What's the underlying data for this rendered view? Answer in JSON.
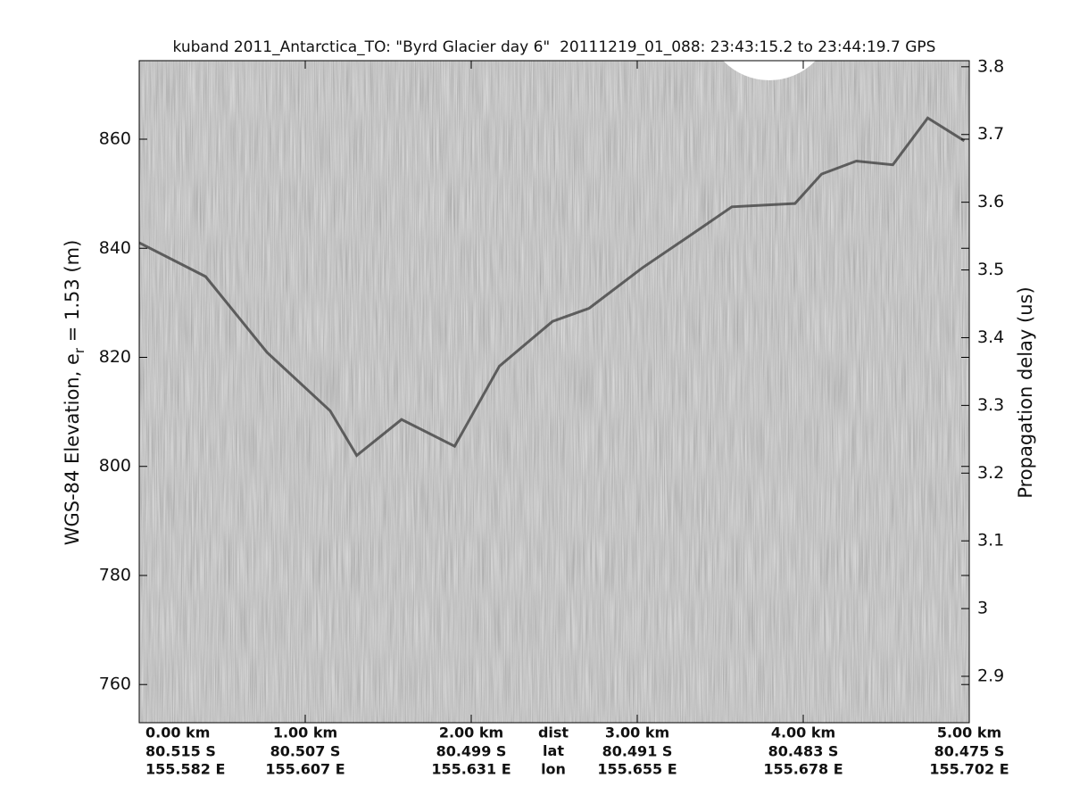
{
  "chart_data": {
    "type": "echogram",
    "title": "kuband 2011_Antarctica_TO: \"Byrd Glacier day 6\"  20111219_01_088: 23:43:15.2 to 23:44:19.7 GPS",
    "y_label": {
      "prefix": "WGS-84 Elevation, e",
      "subscript": "r",
      "suffix": " = 1.53 (m)"
    },
    "y2_label": "Propagation delay (us)",
    "xlim": [
      0,
      5
    ],
    "xticks": [
      {
        "value": 0,
        "label": "0.00 km"
      },
      {
        "value": 1,
        "label": "1.00 km"
      },
      {
        "value": 2,
        "label": "2.00 km"
      },
      {
        "value": 3,
        "label": "3.00 km"
      },
      {
        "value": 4,
        "label": "4.00 km"
      },
      {
        "value": 5,
        "label": "5.00 km"
      }
    ],
    "lat_labels": [
      "80.515 S",
      "80.507 S",
      "80.499 S",
      "80.491 S",
      "80.483 S",
      "80.475 S"
    ],
    "lon_labels": [
      "155.582 E",
      "155.607 E",
      "155.631 E",
      "155.655 E",
      "155.678 E",
      "155.702 E"
    ],
    "row_labels": [
      "dist",
      "lat",
      "lon"
    ],
    "ylim": [
      753,
      874.4
    ],
    "yticks": [
      760,
      780,
      800,
      820,
      840,
      860
    ],
    "y2lim": [
      2.8315,
      3.809
    ],
    "y2ticks": [
      2.9,
      3,
      3.1,
      3.2,
      3.3,
      3.4,
      3.5,
      3.6,
      3.7,
      3.8
    ],
    "series": [
      {
        "color": "#3a3a3a",
        "x": [
          0,
          0.4,
          0.77,
          1.15,
          1.31,
          1.58,
          1.9,
          2.17,
          2.49,
          2.71,
          3.03,
          3.35,
          3.57,
          3.95,
          4.11,
          4.32,
          4.54,
          4.75,
          4.97
        ],
        "values": [
          841,
          834.8,
          820.9,
          810.2,
          802,
          808.6,
          803.7,
          818.4,
          826.6,
          829,
          836.4,
          843,
          847.6,
          848.2,
          853.6,
          856,
          855.3,
          863.9,
          859.7
        ]
      }
    ]
  }
}
